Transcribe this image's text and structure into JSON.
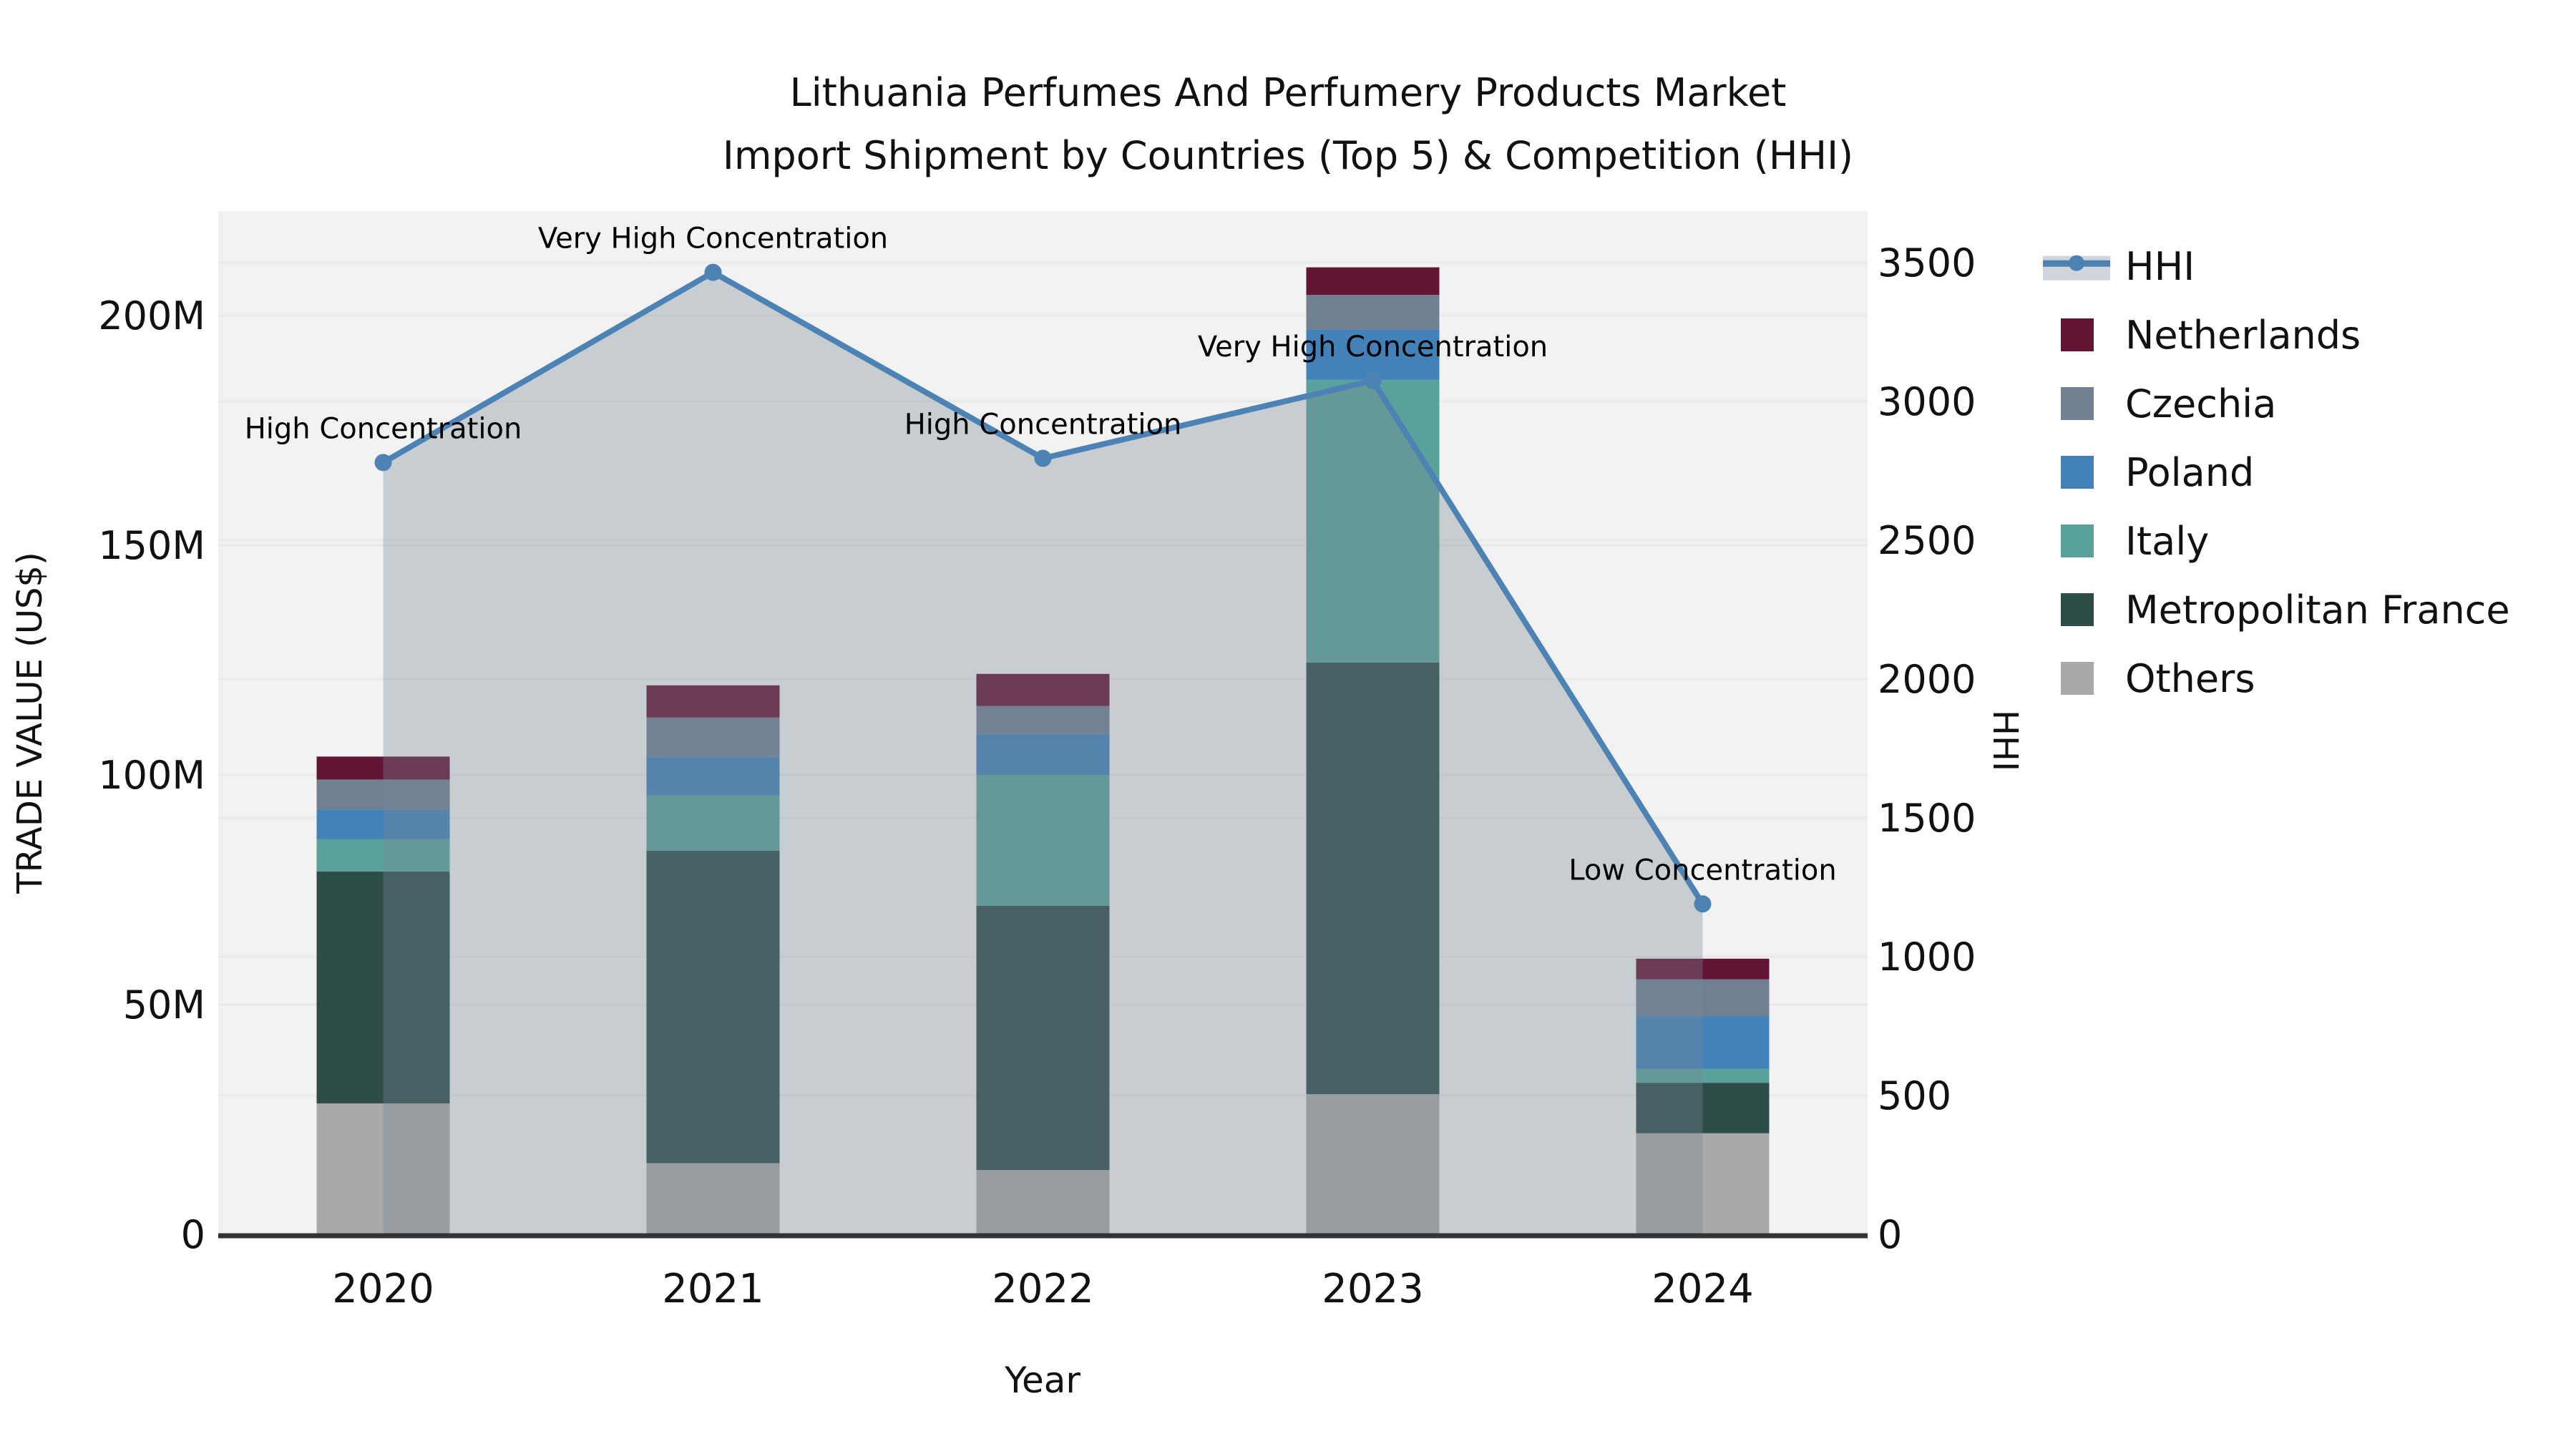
{
  "title": {
    "line1": "Lithuania Perfumes And Perfumery Products Market",
    "line2": "Import Shipment by Countries (Top 5) & Competition (HHI)"
  },
  "legend": {
    "items": [
      {
        "label": "HHI",
        "type": "line",
        "color": "#4c82b4",
        "band": "#d0d5dc"
      },
      {
        "label": "Netherlands",
        "type": "patch",
        "color": "#641536"
      },
      {
        "label": "Czechia",
        "type": "patch",
        "color": "#708090"
      },
      {
        "label": "Poland",
        "type": "patch",
        "color": "#4382b8"
      },
      {
        "label": "Italy",
        "type": "patch",
        "color": "#5aa19c"
      },
      {
        "label": "Metropolitan France",
        "type": "patch",
        "color": "#2e4d49"
      },
      {
        "label": "Others",
        "type": "patch",
        "color": "#a9a9a9"
      }
    ]
  },
  "chart_data": {
    "type": "bar",
    "subtype": "stacked-bars-with-line-overlay",
    "title": "Lithuania Perfumes And Perfumery Products Market Import Shipment by Countries (Top 5) & Competition (HHI)",
    "categories": [
      "2020",
      "2021",
      "2022",
      "2023",
      "2024"
    ],
    "bar_value_unit": "million US$",
    "stack_order_bottom_to_top": [
      "Others",
      "Metropolitan France",
      "Italy",
      "Poland",
      "Czechia",
      "Netherlands"
    ],
    "series": [
      {
        "name": "Others",
        "color": "#a9a9a9",
        "values": [
          28.5,
          15.5,
          14.0,
          30.5,
          22.0
        ]
      },
      {
        "name": "Metropolitan France",
        "color": "#2e4d49",
        "values": [
          50.5,
          68.0,
          57.5,
          94.0,
          11.0
        ]
      },
      {
        "name": "Italy",
        "color": "#5aa19c",
        "values": [
          7.0,
          12.0,
          28.5,
          61.5,
          3.0
        ]
      },
      {
        "name": "Poland",
        "color": "#4382b8",
        "values": [
          6.5,
          8.5,
          9.0,
          11.0,
          11.5
        ]
      },
      {
        "name": "Czechia",
        "color": "#708090",
        "values": [
          6.5,
          8.5,
          6.0,
          7.5,
          8.0
        ]
      },
      {
        "name": "Netherlands",
        "color": "#641536",
        "values": [
          5.0,
          7.0,
          7.0,
          6.0,
          4.5
        ]
      }
    ],
    "bar_totals_musd": [
      104,
      119.5,
      122,
      210.5,
      60
    ],
    "line_series": {
      "name": "HHI",
      "axis": "right",
      "color": "#4c82b4",
      "area_fill": "rgba(120,134,150,0.34)",
      "values": [
        2780,
        3465,
        2795,
        3075,
        1190
      ],
      "annotations": [
        "High Concentration",
        "Very High Concentration",
        "High Concentration",
        "Very High Concentration",
        "Low Concentration"
      ]
    },
    "axes": {
      "x": {
        "label": "Year"
      },
      "left": {
        "label": "TRADE VALUE (US$)",
        "ticks": [
          {
            "v": 0,
            "t": "0"
          },
          {
            "v": 50,
            "t": "50M"
          },
          {
            "v": 100,
            "t": "100M"
          },
          {
            "v": 150,
            "t": "150M"
          },
          {
            "v": 200,
            "t": "200M"
          }
        ],
        "max": 222
      },
      "right": {
        "label": "HHI",
        "ticks": [
          {
            "v": 0,
            "t": "0"
          },
          {
            "v": 500,
            "t": "500"
          },
          {
            "v": 1000,
            "t": "1000"
          },
          {
            "v": 1500,
            "t": "1500"
          },
          {
            "v": 2000,
            "t": "2000"
          },
          {
            "v": 2500,
            "t": "2500"
          },
          {
            "v": 3000,
            "t": "3000"
          },
          {
            "v": 3500,
            "t": "3500"
          }
        ],
        "max": 3686
      }
    },
    "grid": {
      "horizontal": true,
      "color": "#e8e8e8"
    },
    "plot_background": "#f2f2f2",
    "axis_line_color": "#333333",
    "text_color": "#111111",
    "legend_position": "upper-right-outside"
  }
}
